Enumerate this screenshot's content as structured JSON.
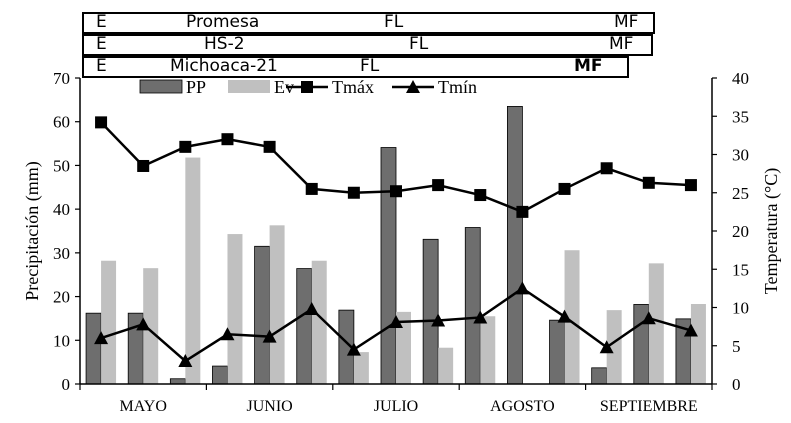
{
  "phenology": [
    {
      "variety": "Promesa",
      "stage_start": "E",
      "stage_mid": "FL",
      "stage_end": "MF"
    },
    {
      "variety": "HS-2",
      "stage_start": "E",
      "stage_mid": "FL",
      "stage_end": "MF"
    },
    {
      "variety": "Michoaca-21",
      "stage_start": "E",
      "stage_mid": "FL",
      "stage_end": "MF"
    }
  ],
  "chart_data": {
    "type": "bar+line",
    "title": "",
    "xlabel": "",
    "ylabel_left": "Precipitación (mm)",
    "ylabel_right": "Temperatura (°C)",
    "ylim_left": [
      0,
      70
    ],
    "ylim_right": [
      0,
      40
    ],
    "yticks_left": [
      0,
      10,
      20,
      30,
      40,
      50,
      60,
      70
    ],
    "yticks_right": [
      0,
      5,
      10,
      15,
      20,
      25,
      30,
      35,
      40
    ],
    "months": [
      "MAYO",
      "JUNIO",
      "JULIO",
      "AGOSTO",
      "SEPTIEMBRE"
    ],
    "periods": 15,
    "series": [
      {
        "name": "PP",
        "kind": "bar",
        "axis": "left",
        "color": "#6e6e6e",
        "values": [
          16.2,
          16.2,
          1.2,
          4.1,
          31.5,
          26.4,
          16.9,
          54.1,
          33.1,
          35.8,
          63.5,
          14.6,
          3.7,
          18.2,
          14.9
        ]
      },
      {
        "name": "Ev",
        "kind": "bar",
        "axis": "left",
        "color": "#c0c0c0",
        "values": [
          28.2,
          26.5,
          51.8,
          34.3,
          36.3,
          28.2,
          7.3,
          16.5,
          8.3,
          15.5,
          0,
          30.6,
          16.9,
          27.6,
          18.3
        ]
      },
      {
        "name": "Tmáx",
        "kind": "line",
        "marker": "square",
        "axis": "right",
        "color": "#000000",
        "values": [
          34.2,
          28.5,
          31.0,
          32.0,
          31.0,
          25.5,
          25.0,
          25.2,
          26.0,
          24.7,
          22.5,
          25.5,
          28.2,
          26.3,
          26.0
        ]
      },
      {
        "name": "Tmín",
        "kind": "line",
        "marker": "triangle",
        "axis": "right",
        "color": "#000000",
        "values": [
          6.0,
          7.8,
          3.0,
          6.5,
          6.2,
          9.8,
          4.5,
          8.1,
          8.3,
          8.7,
          12.5,
          8.8,
          4.8,
          8.6,
          7.0
        ]
      }
    ],
    "legend": [
      "PP",
      "Ev",
      "Tmáx",
      "Tmín"
    ],
    "legend_position": "top-center"
  }
}
